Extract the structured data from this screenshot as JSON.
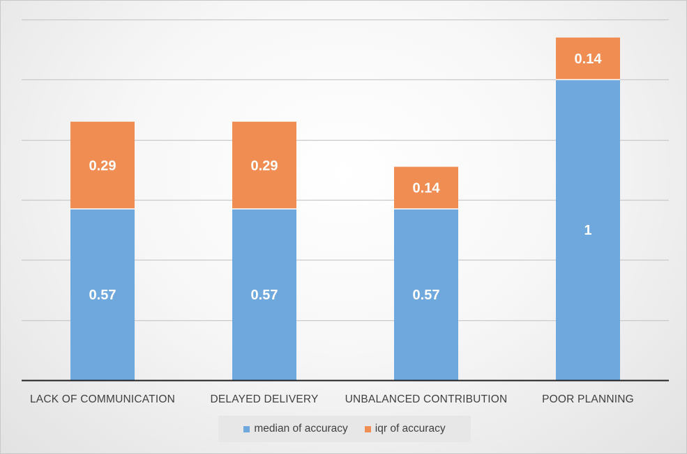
{
  "chart_data": {
    "type": "bar",
    "stacked": true,
    "categories": [
      "LACK OF COMMUNICATION",
      "DELAYED DELIVERY",
      "UNBALANCED CONTRIBUTION",
      "POOR PLANNING"
    ],
    "series": [
      {
        "name": "median of accuracy",
        "values": [
          0.57,
          0.57,
          0.57,
          1
        ],
        "labels": [
          "0.57",
          "0.57",
          "0.57",
          "1"
        ],
        "color": "#6fa8dc"
      },
      {
        "name": "iqr of accuracy",
        "values": [
          0.29,
          0.29,
          0.14,
          0.14
        ],
        "labels": [
          "0.29",
          "0.29",
          "0.14",
          "0.14"
        ],
        "color": "#ef8d52"
      }
    ],
    "ylim": [
      0,
      1.2
    ],
    "grid": true,
    "legend_position": "bottom",
    "title": "",
    "xlabel": "",
    "ylabel": ""
  }
}
